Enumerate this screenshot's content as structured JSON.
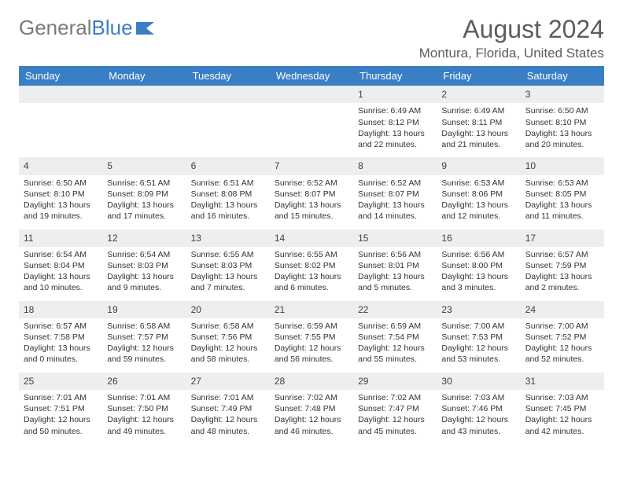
{
  "brand": {
    "part1": "General",
    "part2": "Blue"
  },
  "title": "August 2024",
  "location": "Montura, Florida, United States",
  "colors": {
    "accent": "#3a7fc5",
    "header_bg": "#3a7fc5",
    "daynum_bg": "#eceeef",
    "text": "#333333",
    "muted": "#5c5c5c"
  },
  "day_headers": [
    "Sunday",
    "Monday",
    "Tuesday",
    "Wednesday",
    "Thursday",
    "Friday",
    "Saturday"
  ],
  "weeks": [
    [
      null,
      null,
      null,
      null,
      {
        "n": "1",
        "sunrise": "Sunrise: 6:49 AM",
        "sunset": "Sunset: 8:12 PM",
        "dl1": "Daylight: 13 hours",
        "dl2": "and 22 minutes."
      },
      {
        "n": "2",
        "sunrise": "Sunrise: 6:49 AM",
        "sunset": "Sunset: 8:11 PM",
        "dl1": "Daylight: 13 hours",
        "dl2": "and 21 minutes."
      },
      {
        "n": "3",
        "sunrise": "Sunrise: 6:50 AM",
        "sunset": "Sunset: 8:10 PM",
        "dl1": "Daylight: 13 hours",
        "dl2": "and 20 minutes."
      }
    ],
    [
      {
        "n": "4",
        "sunrise": "Sunrise: 6:50 AM",
        "sunset": "Sunset: 8:10 PM",
        "dl1": "Daylight: 13 hours",
        "dl2": "and 19 minutes."
      },
      {
        "n": "5",
        "sunrise": "Sunrise: 6:51 AM",
        "sunset": "Sunset: 8:09 PM",
        "dl1": "Daylight: 13 hours",
        "dl2": "and 17 minutes."
      },
      {
        "n": "6",
        "sunrise": "Sunrise: 6:51 AM",
        "sunset": "Sunset: 8:08 PM",
        "dl1": "Daylight: 13 hours",
        "dl2": "and 16 minutes."
      },
      {
        "n": "7",
        "sunrise": "Sunrise: 6:52 AM",
        "sunset": "Sunset: 8:07 PM",
        "dl1": "Daylight: 13 hours",
        "dl2": "and 15 minutes."
      },
      {
        "n": "8",
        "sunrise": "Sunrise: 6:52 AM",
        "sunset": "Sunset: 8:07 PM",
        "dl1": "Daylight: 13 hours",
        "dl2": "and 14 minutes."
      },
      {
        "n": "9",
        "sunrise": "Sunrise: 6:53 AM",
        "sunset": "Sunset: 8:06 PM",
        "dl1": "Daylight: 13 hours",
        "dl2": "and 12 minutes."
      },
      {
        "n": "10",
        "sunrise": "Sunrise: 6:53 AM",
        "sunset": "Sunset: 8:05 PM",
        "dl1": "Daylight: 13 hours",
        "dl2": "and 11 minutes."
      }
    ],
    [
      {
        "n": "11",
        "sunrise": "Sunrise: 6:54 AM",
        "sunset": "Sunset: 8:04 PM",
        "dl1": "Daylight: 13 hours",
        "dl2": "and 10 minutes."
      },
      {
        "n": "12",
        "sunrise": "Sunrise: 6:54 AM",
        "sunset": "Sunset: 8:03 PM",
        "dl1": "Daylight: 13 hours",
        "dl2": "and 9 minutes."
      },
      {
        "n": "13",
        "sunrise": "Sunrise: 6:55 AM",
        "sunset": "Sunset: 8:03 PM",
        "dl1": "Daylight: 13 hours",
        "dl2": "and 7 minutes."
      },
      {
        "n": "14",
        "sunrise": "Sunrise: 6:55 AM",
        "sunset": "Sunset: 8:02 PM",
        "dl1": "Daylight: 13 hours",
        "dl2": "and 6 minutes."
      },
      {
        "n": "15",
        "sunrise": "Sunrise: 6:56 AM",
        "sunset": "Sunset: 8:01 PM",
        "dl1": "Daylight: 13 hours",
        "dl2": "and 5 minutes."
      },
      {
        "n": "16",
        "sunrise": "Sunrise: 6:56 AM",
        "sunset": "Sunset: 8:00 PM",
        "dl1": "Daylight: 13 hours",
        "dl2": "and 3 minutes."
      },
      {
        "n": "17",
        "sunrise": "Sunrise: 6:57 AM",
        "sunset": "Sunset: 7:59 PM",
        "dl1": "Daylight: 13 hours",
        "dl2": "and 2 minutes."
      }
    ],
    [
      {
        "n": "18",
        "sunrise": "Sunrise: 6:57 AM",
        "sunset": "Sunset: 7:58 PM",
        "dl1": "Daylight: 13 hours",
        "dl2": "and 0 minutes."
      },
      {
        "n": "19",
        "sunrise": "Sunrise: 6:58 AM",
        "sunset": "Sunset: 7:57 PM",
        "dl1": "Daylight: 12 hours",
        "dl2": "and 59 minutes."
      },
      {
        "n": "20",
        "sunrise": "Sunrise: 6:58 AM",
        "sunset": "Sunset: 7:56 PM",
        "dl1": "Daylight: 12 hours",
        "dl2": "and 58 minutes."
      },
      {
        "n": "21",
        "sunrise": "Sunrise: 6:59 AM",
        "sunset": "Sunset: 7:55 PM",
        "dl1": "Daylight: 12 hours",
        "dl2": "and 56 minutes."
      },
      {
        "n": "22",
        "sunrise": "Sunrise: 6:59 AM",
        "sunset": "Sunset: 7:54 PM",
        "dl1": "Daylight: 12 hours",
        "dl2": "and 55 minutes."
      },
      {
        "n": "23",
        "sunrise": "Sunrise: 7:00 AM",
        "sunset": "Sunset: 7:53 PM",
        "dl1": "Daylight: 12 hours",
        "dl2": "and 53 minutes."
      },
      {
        "n": "24",
        "sunrise": "Sunrise: 7:00 AM",
        "sunset": "Sunset: 7:52 PM",
        "dl1": "Daylight: 12 hours",
        "dl2": "and 52 minutes."
      }
    ],
    [
      {
        "n": "25",
        "sunrise": "Sunrise: 7:01 AM",
        "sunset": "Sunset: 7:51 PM",
        "dl1": "Daylight: 12 hours",
        "dl2": "and 50 minutes."
      },
      {
        "n": "26",
        "sunrise": "Sunrise: 7:01 AM",
        "sunset": "Sunset: 7:50 PM",
        "dl1": "Daylight: 12 hours",
        "dl2": "and 49 minutes."
      },
      {
        "n": "27",
        "sunrise": "Sunrise: 7:01 AM",
        "sunset": "Sunset: 7:49 PM",
        "dl1": "Daylight: 12 hours",
        "dl2": "and 48 minutes."
      },
      {
        "n": "28",
        "sunrise": "Sunrise: 7:02 AM",
        "sunset": "Sunset: 7:48 PM",
        "dl1": "Daylight: 12 hours",
        "dl2": "and 46 minutes."
      },
      {
        "n": "29",
        "sunrise": "Sunrise: 7:02 AM",
        "sunset": "Sunset: 7:47 PM",
        "dl1": "Daylight: 12 hours",
        "dl2": "and 45 minutes."
      },
      {
        "n": "30",
        "sunrise": "Sunrise: 7:03 AM",
        "sunset": "Sunset: 7:46 PM",
        "dl1": "Daylight: 12 hours",
        "dl2": "and 43 minutes."
      },
      {
        "n": "31",
        "sunrise": "Sunrise: 7:03 AM",
        "sunset": "Sunset: 7:45 PM",
        "dl1": "Daylight: 12 hours",
        "dl2": "and 42 minutes."
      }
    ]
  ]
}
